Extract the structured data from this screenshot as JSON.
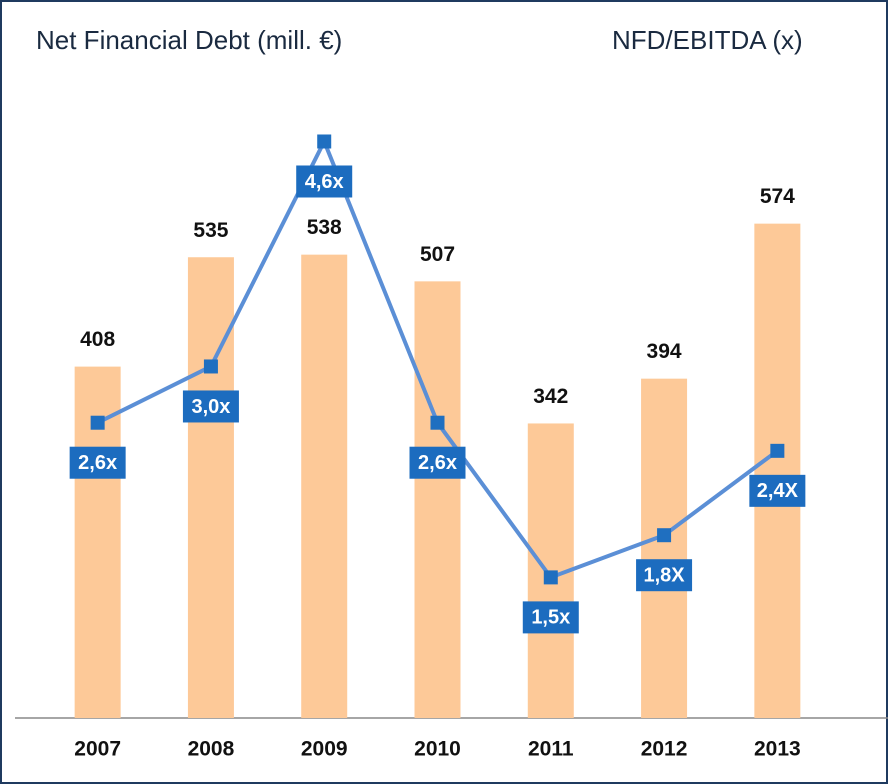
{
  "chart_data": {
    "type": "bar_line",
    "title": "Net Financial Debt (mill. €)",
    "y2_title": "NFD/EBITDA (x)",
    "categories": [
      "2007",
      "2008",
      "2009",
      "2010",
      "2011",
      "2012",
      "2013"
    ],
    "series": [
      {
        "type": "bar",
        "color": "#fdc998",
        "values": [
          408,
          535,
          538,
          507,
          342,
          394,
          574
        ]
      },
      {
        "type": "line",
        "axis": "y2",
        "color": "#5b8fd6",
        "marker_color": "#1f6fc0",
        "label_color": "#1c6cbf",
        "values": [
          2.6,
          3.0,
          4.6,
          2.6,
          1.5,
          1.8,
          2.4
        ],
        "value_labels": [
          "2,6x",
          "3,0x",
          "4,6x",
          "2,6x",
          "1,5x",
          "1,8X",
          "2,4X"
        ]
      }
    ],
    "ylim": [
      0,
      800
    ],
    "y2lim": [
      0.5,
      5.4
    ]
  }
}
